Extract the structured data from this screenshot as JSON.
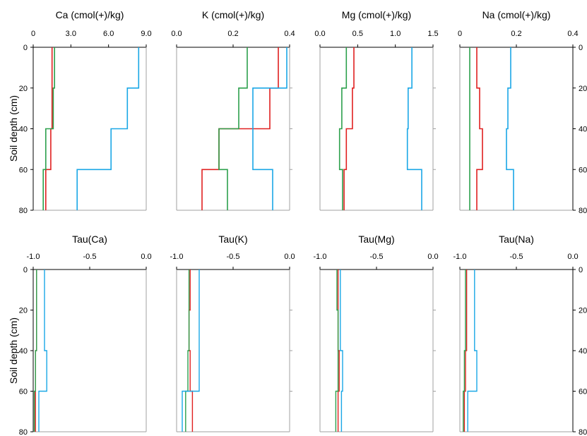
{
  "figure": {
    "ylabel": "Soil depth (cm)",
    "depth_ticks": [
      0,
      20,
      40,
      60,
      80
    ]
  },
  "colors": {
    "red": "#e02020",
    "green": "#2ca04c",
    "blue": "#1aa7e6",
    "gray": "#a0a0a0"
  },
  "chart_data": [
    {
      "type": "line",
      "title": "Ca (cmol(+)/kg)",
      "xlim": [
        0,
        9
      ],
      "x_ticks": [
        0,
        3,
        6,
        9
      ],
      "x_tick_labels": [
        "0",
        "3.0",
        "6.0",
        "9.0"
      ],
      "ylim": [
        0,
        80
      ],
      "y_side": "left",
      "series": [
        {
          "color": "#e02020",
          "depth": [
            0,
            20,
            20,
            40,
            40,
            60,
            60,
            80
          ],
          "values": [
            1.5,
            1.5,
            1.5,
            1.5,
            1.4,
            1.4,
            1.0,
            1.0
          ]
        },
        {
          "color": "#2ca04c",
          "depth": [
            0,
            20,
            20,
            40,
            40,
            60,
            60,
            80
          ],
          "values": [
            1.7,
            1.7,
            1.6,
            1.6,
            1.0,
            1.0,
            0.8,
            0.8
          ]
        },
        {
          "color": "#1aa7e6",
          "depth": [
            0,
            20,
            20,
            40,
            40,
            60,
            60,
            80
          ],
          "values": [
            8.4,
            8.4,
            7.5,
            7.5,
            6.2,
            6.2,
            3.5,
            3.5
          ]
        }
      ]
    },
    {
      "type": "line",
      "title": "K (cmol(+)/kg)",
      "xlim": [
        0,
        0.4
      ],
      "x_ticks": [
        0,
        0.2,
        0.4
      ],
      "x_tick_labels": [
        "0.0",
        "0.2",
        "0.4"
      ],
      "ylim": [
        0,
        80
      ],
      "y_side": "none",
      "series": [
        {
          "color": "#e02020",
          "depth": [
            0,
            20,
            20,
            40,
            40,
            60,
            60,
            80
          ],
          "values": [
            0.36,
            0.36,
            0.33,
            0.33,
            0.15,
            0.15,
            0.09,
            0.09
          ]
        },
        {
          "color": "#2ca04c",
          "depth": [
            0,
            20,
            20,
            40,
            40,
            60,
            60,
            80
          ],
          "values": [
            0.25,
            0.25,
            0.22,
            0.22,
            0.15,
            0.15,
            0.18,
            0.18
          ]
        },
        {
          "color": "#1aa7e6",
          "depth": [
            0,
            20,
            20,
            40,
            40,
            60,
            60,
            80
          ],
          "values": [
            0.39,
            0.39,
            0.27,
            0.27,
            0.27,
            0.27,
            0.34,
            0.34
          ]
        }
      ]
    },
    {
      "type": "line",
      "title": "Mg (cmol(+)/kg)",
      "xlim": [
        0,
        1.5
      ],
      "x_ticks": [
        0,
        0.5,
        1.0,
        1.5
      ],
      "x_tick_labels": [
        "0.0",
        "0.5",
        "1.0",
        "1.5"
      ],
      "ylim": [
        0,
        80
      ],
      "y_side": "none",
      "series": [
        {
          "color": "#e02020",
          "depth": [
            0,
            20,
            20,
            40,
            40,
            60,
            60,
            80
          ],
          "values": [
            0.45,
            0.45,
            0.43,
            0.43,
            0.35,
            0.35,
            0.32,
            0.32
          ]
        },
        {
          "color": "#2ca04c",
          "depth": [
            0,
            20,
            20,
            40,
            40,
            60,
            60,
            80
          ],
          "values": [
            0.35,
            0.35,
            0.29,
            0.29,
            0.26,
            0.26,
            0.3,
            0.3
          ]
        },
        {
          "color": "#1aa7e6",
          "depth": [
            0,
            20,
            20,
            40,
            40,
            60,
            60,
            80
          ],
          "values": [
            1.22,
            1.22,
            1.17,
            1.17,
            1.16,
            1.16,
            1.35,
            1.35
          ]
        }
      ]
    },
    {
      "type": "line",
      "title": "Na (cmol(+)/kg)",
      "xlim": [
        0,
        0.4
      ],
      "x_ticks": [
        0,
        0.2,
        0.4
      ],
      "x_tick_labels": [
        "0",
        "0.2",
        "0.4"
      ],
      "ylim": [
        0,
        80
      ],
      "y_side": "right",
      "series": [
        {
          "color": "#e02020",
          "depth": [
            0,
            20,
            20,
            40,
            40,
            60,
            60,
            80
          ],
          "values": [
            0.06,
            0.06,
            0.07,
            0.07,
            0.08,
            0.08,
            0.06,
            0.06
          ]
        },
        {
          "color": "#2ca04c",
          "depth": [
            0,
            20,
            20,
            40,
            40,
            60,
            60,
            80
          ],
          "values": [
            0.035,
            0.035,
            0.035,
            0.035,
            0.035,
            0.035,
            0.035,
            0.035
          ]
        },
        {
          "color": "#1aa7e6",
          "depth": [
            0,
            20,
            20,
            40,
            40,
            60,
            60,
            80
          ],
          "values": [
            0.18,
            0.18,
            0.17,
            0.17,
            0.165,
            0.165,
            0.19,
            0.19
          ]
        }
      ]
    },
    {
      "type": "line",
      "title": "Tau(Ca)",
      "xlim": [
        -1,
        0
      ],
      "x_ticks": [
        -1,
        -0.5,
        0
      ],
      "x_tick_labels": [
        "-1.0",
        "-0.5",
        "0.0"
      ],
      "ylim": [
        0,
        80
      ],
      "y_side": "left",
      "series": [
        {
          "color": "#e02020",
          "depth": [
            0,
            20,
            20,
            40,
            40,
            60,
            60,
            80
          ],
          "values": [
            -0.97,
            -0.97,
            -0.97,
            -0.97,
            -0.98,
            -0.98,
            -0.98,
            -0.98
          ]
        },
        {
          "color": "#2ca04c",
          "depth": [
            0,
            20,
            20,
            40,
            40,
            60,
            60,
            80
          ],
          "values": [
            -0.97,
            -0.97,
            -0.97,
            -0.97,
            -0.98,
            -0.98,
            -0.99,
            -0.99
          ]
        },
        {
          "color": "#1aa7e6",
          "depth": [
            0,
            20,
            20,
            40,
            40,
            60,
            60,
            80
          ],
          "values": [
            -0.9,
            -0.9,
            -0.9,
            -0.9,
            -0.88,
            -0.88,
            -0.95,
            -0.95
          ]
        }
      ]
    },
    {
      "type": "line",
      "title": "Tau(K)",
      "xlim": [
        -1,
        0
      ],
      "x_ticks": [
        -1,
        -0.5,
        0
      ],
      "x_tick_labels": [
        "-1.0",
        "-0.5",
        "0.0"
      ],
      "ylim": [
        0,
        80
      ],
      "y_side": "none",
      "series": [
        {
          "color": "#e02020",
          "depth": [
            0,
            20,
            20,
            40,
            40,
            60,
            60,
            80
          ],
          "values": [
            -0.88,
            -0.88,
            -0.89,
            -0.89,
            -0.88,
            -0.88,
            -0.86,
            -0.86
          ]
        },
        {
          "color": "#2ca04c",
          "depth": [
            0,
            20,
            20,
            40,
            40,
            60,
            60,
            80
          ],
          "values": [
            -0.89,
            -0.89,
            -0.89,
            -0.89,
            -0.9,
            -0.9,
            -0.92,
            -0.92
          ]
        },
        {
          "color": "#1aa7e6",
          "depth": [
            0,
            20,
            20,
            40,
            40,
            60,
            60,
            80
          ],
          "values": [
            -0.8,
            -0.8,
            -0.8,
            -0.8,
            -0.8,
            -0.8,
            -0.95,
            -0.95
          ]
        }
      ]
    },
    {
      "type": "line",
      "title": "Tau(Mg)",
      "xlim": [
        -1,
        0
      ],
      "x_ticks": [
        -1,
        -0.5,
        0
      ],
      "x_tick_labels": [
        "-1.0",
        "-0.5",
        "0.0"
      ],
      "ylim": [
        0,
        80
      ],
      "y_side": "none",
      "series": [
        {
          "color": "#e02020",
          "depth": [
            0,
            20,
            20,
            40,
            40,
            60,
            60,
            80
          ],
          "values": [
            -0.84,
            -0.84,
            -0.84,
            -0.84,
            -0.83,
            -0.83,
            -0.84,
            -0.84
          ]
        },
        {
          "color": "#2ca04c",
          "depth": [
            0,
            20,
            20,
            40,
            40,
            60,
            60,
            80
          ],
          "values": [
            -0.85,
            -0.85,
            -0.84,
            -0.84,
            -0.84,
            -0.84,
            -0.86,
            -0.86
          ]
        },
        {
          "color": "#1aa7e6",
          "depth": [
            0,
            20,
            20,
            40,
            40,
            60,
            60,
            80
          ],
          "values": [
            -0.82,
            -0.82,
            -0.82,
            -0.82,
            -0.8,
            -0.8,
            -0.81,
            -0.81
          ]
        }
      ]
    },
    {
      "type": "line",
      "title": "Tau(Na)",
      "xlim": [
        -1,
        0
      ],
      "x_ticks": [
        -1,
        -0.5,
        0
      ],
      "x_tick_labels": [
        "-1.0",
        "-0.5",
        "0.0"
      ],
      "ylim": [
        0,
        80
      ],
      "y_side": "right",
      "series": [
        {
          "color": "#e02020",
          "depth": [
            0,
            20,
            20,
            40,
            40,
            60,
            60,
            80
          ],
          "values": [
            -0.94,
            -0.94,
            -0.94,
            -0.94,
            -0.95,
            -0.95,
            -0.96,
            -0.96
          ]
        },
        {
          "color": "#2ca04c",
          "depth": [
            0,
            20,
            20,
            40,
            40,
            60,
            60,
            80
          ],
          "values": [
            -0.95,
            -0.95,
            -0.95,
            -0.95,
            -0.96,
            -0.96,
            -0.97,
            -0.97
          ]
        },
        {
          "color": "#1aa7e6",
          "depth": [
            0,
            20,
            20,
            40,
            40,
            60,
            60,
            80
          ],
          "values": [
            -0.87,
            -0.87,
            -0.87,
            -0.87,
            -0.85,
            -0.85,
            -0.93,
            -0.93
          ]
        }
      ]
    }
  ]
}
